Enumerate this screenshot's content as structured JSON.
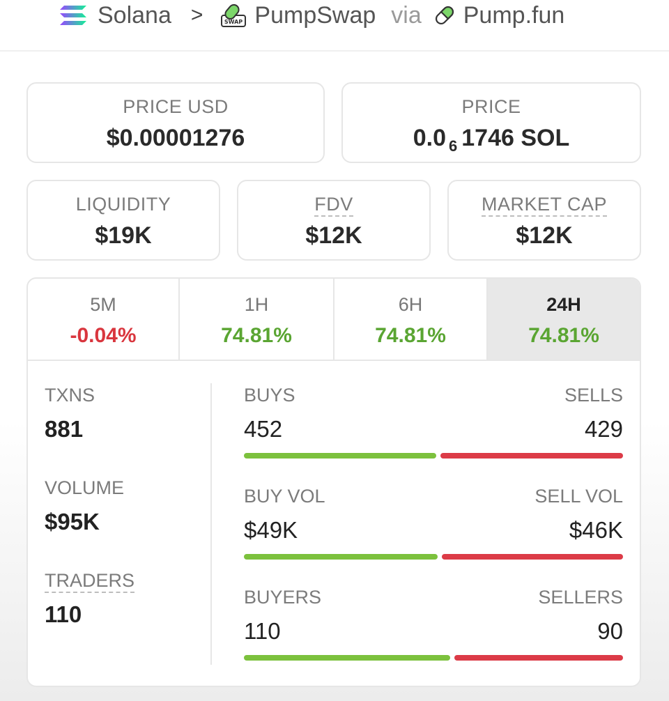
{
  "breadcrumb": {
    "chain": "Solana",
    "separator": ">",
    "dex": "PumpSwap",
    "dex_logo_text": "SWAP",
    "via": "via",
    "launchpad": "Pump.fun"
  },
  "price_usd": {
    "label": "PRICE USD",
    "value": "$0.00001276"
  },
  "price": {
    "label": "PRICE",
    "prefix": "0.0",
    "zeros": "6",
    "digits": "1746",
    "unit": "SOL"
  },
  "liquidity": {
    "label": "LIQUIDITY",
    "value": "$19K"
  },
  "fdv": {
    "label": "FDV",
    "value": "$12K"
  },
  "market_cap": {
    "label": "MARKET CAP",
    "value": "$12K"
  },
  "tabs": [
    {
      "label": "5M",
      "change": "-0.04%"
    },
    {
      "label": "1H",
      "change": "74.81%"
    },
    {
      "label": "6H",
      "change": "74.81%"
    },
    {
      "label": "24H",
      "change": "74.81%"
    }
  ],
  "active_tab": "24H",
  "stats": {
    "txns": {
      "label": "TXNS",
      "value": "881"
    },
    "volume": {
      "label": "VOLUME",
      "value": "$95K"
    },
    "traders": {
      "label": "TRADERS",
      "value": "110"
    },
    "buys": {
      "label": "BUYS",
      "value": "452"
    },
    "sells": {
      "label": "SELLS",
      "value": "429"
    },
    "buy_vol": {
      "label": "BUY VOL",
      "value": "$49K"
    },
    "sell_vol": {
      "label": "SELL VOL",
      "value": "$46K"
    },
    "buyers": {
      "label": "BUYERS",
      "value": "110"
    },
    "sellers": {
      "label": "SELLERS",
      "value": "90"
    }
  },
  "ratios": {
    "buys": 0.513,
    "buy_vol": 0.516,
    "buyers": 0.55
  },
  "colors": {
    "positive": "#5aa532",
    "negative": "#d9363e",
    "buy_bar": "#7cc13d",
    "sell_bar": "#dc3b47"
  }
}
